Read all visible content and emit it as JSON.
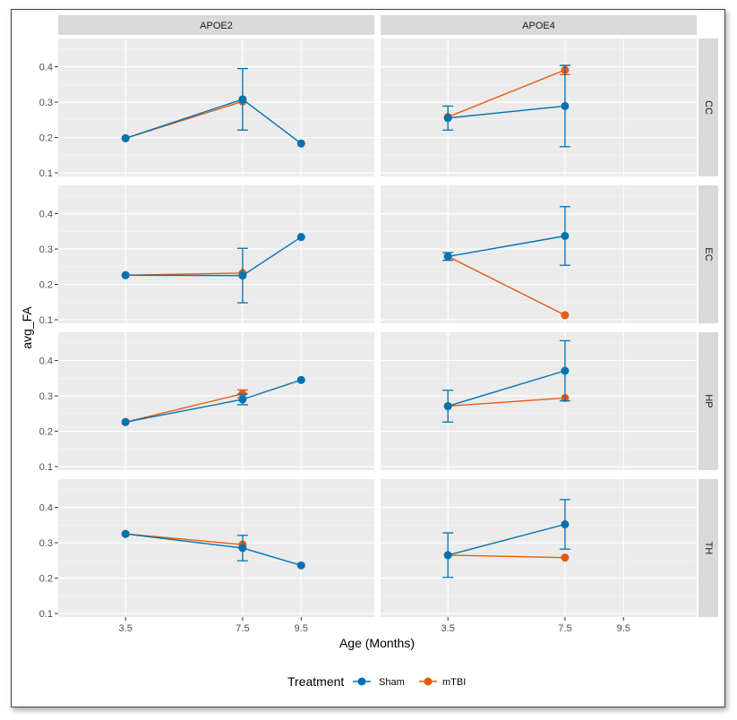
{
  "chart_data": {
    "type": "line",
    "facet_cols": [
      "APOE2",
      "APOE4"
    ],
    "facet_rows": [
      "CC",
      "EC",
      "HP",
      "TH"
    ],
    "xlabel": "Age (Months)",
    "ylabel": "avg_FA",
    "x_ticks": [
      3.5,
      7.5,
      9.5
    ],
    "x_tick_labels": [
      "3.5",
      "7.5",
      "9.5"
    ],
    "xlim": [
      1.2,
      12.0
    ],
    "y_ticks": [
      0.1,
      0.2,
      0.3,
      0.4
    ],
    "y_tick_labels": [
      "0.1",
      "0.2",
      "0.3",
      "0.4"
    ],
    "ylim": [
      0.09,
      0.48
    ],
    "grid": true,
    "legend": {
      "title": "Treatment",
      "placement": "bottom",
      "entries": [
        {
          "name": "Sham",
          "color": "#0072B2"
        },
        {
          "name": "mTBI",
          "color": "#E85A10"
        }
      ]
    },
    "panels": [
      {
        "col": "APOE2",
        "row": "CC",
        "series": [
          {
            "name": "Sham",
            "x": [
              3.5,
              7.5,
              9.5
            ],
            "y": [
              0.198,
              0.308,
              0.183
            ],
            "err": [
              null,
              0.087,
              null
            ]
          },
          {
            "name": "mTBI",
            "x": [
              3.5,
              7.5
            ],
            "y": [
              0.198,
              0.302
            ],
            "err": [
              null,
              null
            ]
          }
        ]
      },
      {
        "col": "APOE4",
        "row": "CC",
        "series": [
          {
            "name": "Sham",
            "x": [
              3.5,
              7.5
            ],
            "y": [
              0.255,
              0.289
            ],
            "err": [
              0.034,
              0.115
            ]
          },
          {
            "name": "mTBI",
            "x": [
              3.5,
              7.5
            ],
            "y": [
              0.258,
              0.391
            ],
            "err": [
              null,
              0.013
            ]
          }
        ]
      },
      {
        "col": "APOE2",
        "row": "EC",
        "series": [
          {
            "name": "Sham",
            "x": [
              3.5,
              7.5,
              9.5
            ],
            "y": [
              0.226,
              0.225,
              0.334
            ],
            "err": [
              null,
              0.077,
              null
            ]
          },
          {
            "name": "mTBI",
            "x": [
              3.5,
              7.5
            ],
            "y": [
              0.226,
              0.232
            ],
            "err": [
              null,
              null
            ]
          }
        ]
      },
      {
        "col": "APOE4",
        "row": "EC",
        "series": [
          {
            "name": "Sham",
            "x": [
              3.5,
              7.5
            ],
            "y": [
              0.279,
              0.337
            ],
            "err": [
              0.011,
              0.083
            ]
          },
          {
            "name": "mTBI",
            "x": [
              3.5,
              7.5
            ],
            "y": [
              0.279,
              0.113
            ],
            "err": [
              null,
              null
            ]
          }
        ]
      },
      {
        "col": "APOE2",
        "row": "HP",
        "series": [
          {
            "name": "Sham",
            "x": [
              3.5,
              7.5,
              9.5
            ],
            "y": [
              0.226,
              0.29,
              0.345
            ],
            "err": [
              null,
              0.015,
              null
            ]
          },
          {
            "name": "mTBI",
            "x": [
              3.5,
              7.5
            ],
            "y": [
              0.226,
              0.306
            ],
            "err": [
              null,
              0.011
            ]
          }
        ]
      },
      {
        "col": "APOE4",
        "row": "HP",
        "series": [
          {
            "name": "Sham",
            "x": [
              3.5,
              7.5
            ],
            "y": [
              0.271,
              0.371
            ],
            "err": [
              0.045,
              0.085
            ]
          },
          {
            "name": "mTBI",
            "x": [
              3.5,
              7.5
            ],
            "y": [
              0.271,
              0.294
            ],
            "err": [
              null,
              null
            ]
          }
        ]
      },
      {
        "col": "APOE2",
        "row": "TH",
        "series": [
          {
            "name": "Sham",
            "x": [
              3.5,
              7.5,
              9.5
            ],
            "y": [
              0.325,
              0.285,
              0.236
            ],
            "err": [
              null,
              0.036,
              null
            ]
          },
          {
            "name": "mTBI",
            "x": [
              3.5,
              7.5
            ],
            "y": [
              0.325,
              0.295
            ],
            "err": [
              null,
              null
            ]
          }
        ]
      },
      {
        "col": "APOE4",
        "row": "TH",
        "series": [
          {
            "name": "Sham",
            "x": [
              3.5,
              7.5
            ],
            "y": [
              0.265,
              0.352
            ],
            "err": [
              0.063,
              0.07
            ]
          },
          {
            "name": "mTBI",
            "x": [
              3.5,
              7.5
            ],
            "y": [
              0.265,
              0.258
            ],
            "err": [
              null,
              null
            ]
          }
        ]
      }
    ]
  }
}
